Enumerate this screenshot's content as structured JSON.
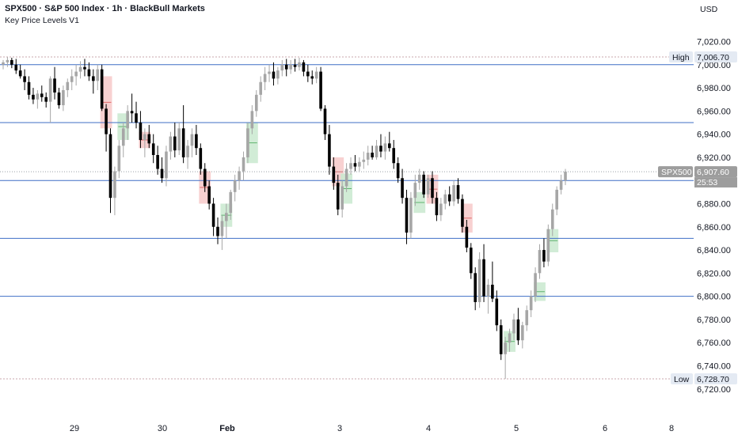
{
  "header": {
    "title": "SPX500 · S&P 500 Index · 1h · BlackBull Markets",
    "indicator": "Key Price Levels V1",
    "currency": "USD"
  },
  "colors": {
    "up": "#a6a6a6",
    "down": "#000000",
    "level_line": "#3f6fc6",
    "hl_line": "#c9a7ac",
    "current_line": "#9aa0a6",
    "tag_bg": "#9d9d9d",
    "hl_tag_bg": "#e4eaf3",
    "green_zone": "#c9e9cf",
    "red_zone": "#f7c9c9"
  },
  "chart_data": {
    "type": "candlestick",
    "y_axis": {
      "ticks": [
        "6,720.00",
        "6,740.00",
        "6,760.00",
        "6,780.00",
        "6,800.00",
        "6,820.00",
        "6,840.00",
        "6,860.00",
        "6,880.00",
        "6,900.00",
        "6,920.00",
        "6,940.00",
        "6,960.00",
        "6,980.00",
        "7,000.00",
        "7,020.00"
      ],
      "tick_values": [
        6720,
        6740,
        6760,
        6780,
        6800,
        6820,
        6840,
        6860,
        6880,
        6900,
        6920,
        6940,
        6960,
        6980,
        7000,
        7020
      ],
      "range": [
        6713,
        7034
      ]
    },
    "x_axis": {
      "labels": [
        "29",
        "30",
        "Feb",
        "3",
        "4",
        "5",
        "6",
        "8"
      ],
      "bold": [
        false,
        false,
        true,
        false,
        false,
        false,
        false,
        false
      ]
    },
    "key_levels": [
      7000,
      6950,
      6900,
      6850,
      6800
    ],
    "high": {
      "label": "High",
      "value": 7006.7,
      "text": "7,006.70"
    },
    "low": {
      "label": "Low",
      "value": 6728.7,
      "text": "6,728.70"
    },
    "current": {
      "symbol": "SPX500",
      "value": 6907.6,
      "text": "6,907.60",
      "countdown": "25:53"
    },
    "series": [
      {
        "name": "SPX500",
        "ohlc": [
          [
            7000,
            7004,
            6996,
            7002
          ],
          [
            7002,
            7006.7,
            6998,
            7004
          ],
          [
            7004,
            7006,
            6997,
            7000
          ],
          [
            7000,
            7005,
            6992,
            6995
          ],
          [
            6995,
            7000,
            6988,
            6990
          ],
          [
            6990,
            6996,
            6978,
            6985
          ],
          [
            6985,
            6990,
            6970,
            6974
          ],
          [
            6974,
            6980,
            6966,
            6970
          ],
          [
            6970,
            6978,
            6962,
            6975
          ],
          [
            6975,
            6982,
            6968,
            6972
          ],
          [
            6972,
            6976,
            6963,
            6968
          ],
          [
            6968,
            6990,
            6950,
            6988
          ],
          [
            6988,
            6998,
            6970,
            6976
          ],
          [
            6976,
            6980,
            6962,
            6965
          ],
          [
            6965,
            6982,
            6960,
            6978
          ],
          [
            6978,
            6988,
            6972,
            6985
          ],
          [
            6985,
            6996,
            6978,
            6990
          ],
          [
            6990,
            7000,
            6982,
            6994
          ],
          [
            6994,
            7003,
            6988,
            6998
          ],
          [
            6998,
            7005,
            6990,
            6996
          ],
          [
            6996,
            7002,
            6986,
            6990
          ],
          [
            6990,
            6996,
            6975,
            6986
          ],
          [
            6986,
            7000,
            6978,
            6996
          ],
          [
            6996,
            7000,
            6960,
            6962
          ],
          [
            6962,
            6966,
            6925,
            6940
          ],
          [
            6940,
            6945,
            6872,
            6885
          ],
          [
            6885,
            6912,
            6870,
            6908
          ],
          [
            6908,
            6935,
            6902,
            6930
          ],
          [
            6930,
            6950,
            6920,
            6945
          ],
          [
            6945,
            6965,
            6935,
            6960
          ],
          [
            6960,
            6975,
            6950,
            6958
          ],
          [
            6958,
            6968,
            6945,
            6950
          ],
          [
            6950,
            6960,
            6928,
            6935
          ],
          [
            6935,
            6945,
            6920,
            6940
          ],
          [
            6940,
            6948,
            6928,
            6932
          ],
          [
            6932,
            6940,
            6915,
            6922
          ],
          [
            6922,
            6930,
            6905,
            6910
          ],
          [
            6910,
            6920,
            6898,
            6902
          ],
          [
            6902,
            6930,
            6895,
            6925
          ],
          [
            6925,
            6942,
            6918,
            6938
          ],
          [
            6938,
            6950,
            6920,
            6926
          ],
          [
            6926,
            6950,
            6922,
            6945
          ],
          [
            6945,
            6965,
            6915,
            6920
          ],
          [
            6920,
            6935,
            6910,
            6930
          ],
          [
            6930,
            6945,
            6920,
            6940
          ],
          [
            6940,
            6948,
            6922,
            6928
          ],
          [
            6928,
            6932,
            6905,
            6910
          ],
          [
            6910,
            6915,
            6890,
            6895
          ],
          [
            6895,
            6900,
            6875,
            6880
          ],
          [
            6880,
            6885,
            6852,
            6860
          ],
          [
            6860,
            6868,
            6845,
            6852
          ],
          [
            6852,
            6870,
            6840,
            6865
          ],
          [
            6865,
            6880,
            6850,
            6872
          ],
          [
            6872,
            6892,
            6866,
            6890
          ],
          [
            6890,
            6905,
            6882,
            6900
          ],
          [
            6900,
            6912,
            6892,
            6908
          ],
          [
            6908,
            6925,
            6900,
            6920
          ],
          [
            6920,
            6950,
            6915,
            6945
          ],
          [
            6945,
            6965,
            6940,
            6960
          ],
          [
            6960,
            6978,
            6955,
            6974
          ],
          [
            6974,
            6990,
            6968,
            6985
          ],
          [
            6985,
            6998,
            6978,
            6992
          ],
          [
            6992,
            7000,
            6985,
            6994
          ],
          [
            6994,
            7002,
            6982,
            6988
          ],
          [
            6988,
            6998,
            6983,
            6995
          ],
          [
            6995,
            7004,
            6990,
            7000
          ],
          [
            7000,
            7005,
            6990,
            6996
          ],
          [
            6996,
            7004,
            6992,
            7000
          ],
          [
            7000,
            7005,
            6994,
            6998
          ],
          [
            6998,
            7006,
            6995,
            7002
          ],
          [
            7002,
            7004,
            6990,
            6994
          ],
          [
            6994,
            7000,
            6985,
            6990
          ],
          [
            6990,
            6995,
            6983,
            6988
          ],
          [
            6988,
            6998,
            6984,
            6994
          ],
          [
            6994,
            6998,
            6960,
            6962
          ],
          [
            6962,
            6965,
            6935,
            6940
          ],
          [
            6940,
            6948,
            6905,
            6912
          ],
          [
            6912,
            6920,
            6892,
            6898
          ],
          [
            6898,
            6905,
            6870,
            6875
          ],
          [
            6875,
            6900,
            6868,
            6895
          ],
          [
            6895,
            6915,
            6890,
            6910
          ],
          [
            6910,
            6920,
            6905,
            6915
          ],
          [
            6915,
            6922,
            6908,
            6912
          ],
          [
            6912,
            6920,
            6908,
            6916
          ],
          [
            6916,
            6925,
            6910,
            6918
          ],
          [
            6918,
            6930,
            6913,
            6924
          ],
          [
            6924,
            6930,
            6918,
            6920
          ],
          [
            6920,
            6935,
            6918,
            6930
          ],
          [
            6930,
            6940,
            6920,
            6925
          ],
          [
            6925,
            6938,
            6918,
            6932
          ],
          [
            6932,
            6942,
            6925,
            6928
          ],
          [
            6928,
            6935,
            6910,
            6915
          ],
          [
            6915,
            6920,
            6898,
            6902
          ],
          [
            6902,
            6910,
            6880,
            6885
          ],
          [
            6885,
            6892,
            6845,
            6855
          ],
          [
            6855,
            6890,
            6850,
            6885
          ],
          [
            6885,
            6905,
            6878,
            6898
          ],
          [
            6898,
            6910,
            6892,
            6905
          ],
          [
            6905,
            6908,
            6885,
            6888
          ],
          [
            6888,
            6905,
            6885,
            6902
          ],
          [
            6902,
            6908,
            6880,
            6885
          ],
          [
            6885,
            6890,
            6865,
            6870
          ],
          [
            6870,
            6885,
            6865,
            6880
          ],
          [
            6880,
            6892,
            6875,
            6888
          ],
          [
            6888,
            6895,
            6878,
            6882
          ],
          [
            6882,
            6900,
            6878,
            6896
          ],
          [
            6896,
            6902,
            6880,
            6884
          ],
          [
            6884,
            6888,
            6855,
            6860
          ],
          [
            6860,
            6866,
            6838,
            6842
          ],
          [
            6842,
            6846,
            6815,
            6820
          ],
          [
            6820,
            6825,
            6788,
            6795
          ],
          [
            6795,
            6838,
            6790,
            6832
          ],
          [
            6832,
            6845,
            6795,
            6800
          ],
          [
            6800,
            6815,
            6785,
            6810
          ],
          [
            6810,
            6830,
            6795,
            6798
          ],
          [
            6798,
            6805,
            6770,
            6775
          ],
          [
            6775,
            6780,
            6745,
            6750
          ],
          [
            6750,
            6765,
            6728.7,
            6760
          ],
          [
            6760,
            6772,
            6752,
            6768
          ],
          [
            6768,
            6785,
            6762,
            6780
          ],
          [
            6780,
            6790,
            6758,
            6762
          ],
          [
            6762,
            6778,
            6755,
            6775
          ],
          [
            6775,
            6792,
            6770,
            6788
          ],
          [
            6788,
            6805,
            6782,
            6800
          ],
          [
            6800,
            6825,
            6795,
            6820
          ],
          [
            6820,
            6845,
            6815,
            6840
          ],
          [
            6840,
            6850,
            6825,
            6830
          ],
          [
            6830,
            6862,
            6826,
            6858
          ],
          [
            6858,
            6880,
            6852,
            6875
          ],
          [
            6875,
            6895,
            6870,
            6892
          ],
          [
            6892,
            6905,
            6888,
            6900
          ],
          [
            6900,
            6910,
            6896,
            6907.6
          ]
        ]
      }
    ],
    "zones": [
      {
        "type": "red",
        "start": 23,
        "end": 25,
        "from": 6945,
        "to": 6990
      },
      {
        "type": "green",
        "start": 27,
        "end": 29,
        "from": 6935,
        "to": 6958
      },
      {
        "type": "red",
        "start": 32,
        "end": 34,
        "from": 6928,
        "to": 6942
      },
      {
        "type": "red",
        "start": 46,
        "end": 48,
        "from": 6880,
        "to": 6908
      },
      {
        "type": "green",
        "start": 51,
        "end": 53,
        "from": 6860,
        "to": 6880
      },
      {
        "type": "green",
        "start": 57,
        "end": 59,
        "from": 6915,
        "to": 6950
      },
      {
        "type": "red",
        "start": 77,
        "end": 79,
        "from": 6895,
        "to": 6920
      },
      {
        "type": "green",
        "start": 79,
        "end": 81,
        "from": 6880,
        "to": 6906
      },
      {
        "type": "green",
        "start": 96,
        "end": 98,
        "from": 6872,
        "to": 6890
      },
      {
        "type": "red",
        "start": 99,
        "end": 101,
        "from": 6880,
        "to": 6905
      },
      {
        "type": "red",
        "start": 107,
        "end": 109,
        "from": 6855,
        "to": 6880
      },
      {
        "type": "green",
        "start": 117,
        "end": 119,
        "from": 6752,
        "to": 6770
      },
      {
        "type": "green",
        "start": 124,
        "end": 126,
        "from": 6796,
        "to": 6812
      },
      {
        "type": "green",
        "start": 127,
        "end": 129,
        "from": 6838,
        "to": 6858
      }
    ],
    "grid": false
  }
}
